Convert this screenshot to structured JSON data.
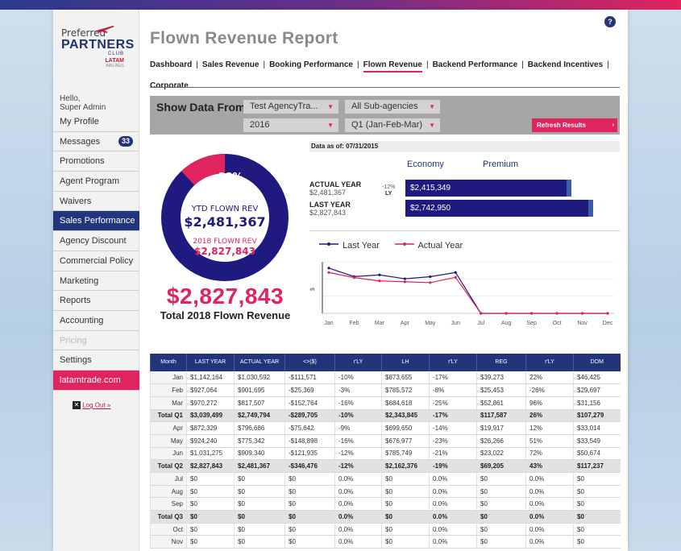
{
  "app": {
    "logo": {
      "line1": "Preferred",
      "line2": "PARTNERS",
      "line3": "CLUB",
      "line4": "LATAM",
      "line5": "AIRLINES"
    },
    "help_label": "?"
  },
  "sidebar": {
    "greeting_1": "Hello,",
    "greeting_2": "Super Admin",
    "items": [
      {
        "label": "My Profile"
      },
      {
        "label": "Messages",
        "badge": "33"
      },
      {
        "label": "Promotions"
      },
      {
        "label": "Agent Program"
      },
      {
        "label": "Waivers"
      },
      {
        "label": "Sales Performance"
      },
      {
        "label": "Agency Discount"
      },
      {
        "label": "Commercial Policy"
      },
      {
        "label": "Marketing"
      },
      {
        "label": "Reports"
      },
      {
        "label": "Accounting"
      },
      {
        "label": "Pricing"
      },
      {
        "label": "Settings"
      },
      {
        "label": "latamtrade.com"
      }
    ],
    "logout_x": "✕",
    "logout_label": "Log Out »"
  },
  "header": {
    "title": "Flown Revenue Report",
    "nav": [
      "Dashboard",
      "Sales Revenue",
      "Booking Performance",
      "Flown Revenue",
      "Backend Performance",
      "Backend Incentives",
      "Corporate"
    ],
    "nav_sep": "|"
  },
  "filters": {
    "label": "Show Data From:",
    "agency": "Test AgencyTra...",
    "subagency": "All Sub-agencies",
    "year": "2016",
    "period": "Q1 (Jan-Feb-Mar)",
    "refresh": "Refresh Results",
    "caret": "▼",
    "refresh_caret": "›"
  },
  "donut": {
    "percent_label": "88%",
    "percent": 0.88,
    "ytd_label": "YTD FLOWN REV",
    "ytd_value": "$2,481,367",
    "prev_label": "2018 FLOWN REV",
    "prev_value": "$2,827,843",
    "colors": {
      "main": "#1e1a80",
      "accent": "#e0245e"
    }
  },
  "total": {
    "value": "$2,827,843",
    "label": "Total 2018 Flown Revenue"
  },
  "bars": {
    "as_of": "Data as of: 07/31/2015",
    "cat_economy": "Economy",
    "cat_premium": "Premium",
    "actual_title": "ACTUAL YEAR",
    "actual_sub": "$2,481,367",
    "last_title": "LAST YEAR",
    "last_sub": "$2,827,843",
    "pct": "-12%",
    "pct_sub": "LY",
    "actual_value": "$2,415,349",
    "actual_amount": 2415349,
    "last_value": "$2,742,950",
    "last_amount": 2742950
  },
  "chart_data": {
    "type": "line",
    "x": [
      "Jan",
      "Feb",
      "Mar",
      "Apr",
      "May",
      "Jun",
      "Jul",
      "Aug",
      "Sep",
      "Oct",
      "Nov",
      "Dec"
    ],
    "series": [
      {
        "name": "Last Year",
        "color": "#1e1a80",
        "values": [
          1142164,
          927064,
          970272,
          872329,
          924240,
          1031275,
          0,
          0,
          0,
          0,
          0,
          0
        ]
      },
      {
        "name": "Actual Year",
        "color": "#e0245e",
        "values": [
          1030592,
          901695,
          817507,
          796686,
          775342,
          909340,
          0,
          0,
          0,
          0,
          0,
          0
        ]
      }
    ],
    "ylabel": "$",
    "ylim": [
      0,
      1300000
    ],
    "grid": true,
    "legend_position": "top-left"
  },
  "table": {
    "headers": [
      "Month",
      "LAST YEAR",
      "ACTUAL YEAR",
      "<>($)",
      "r'LY",
      "LH",
      "r'LY",
      "REG",
      "r'LY",
      "DOM"
    ],
    "rows": [
      {
        "total": false,
        "cells": [
          "Jan",
          "$1,142,164",
          "$1,030,592",
          "-$111,571",
          "-10%",
          "$873,655",
          "-17%",
          "$39,273",
          "22%",
          "$46,425"
        ]
      },
      {
        "total": false,
        "cells": [
          "Feb",
          "$927,064",
          "$901,695",
          "-$25,369",
          "-3%",
          "$785,572",
          "-8%",
          "$25,453",
          "-26%",
          "$29,697"
        ]
      },
      {
        "total": false,
        "cells": [
          "Mar",
          "$970,272",
          "$817,507",
          "-$152,764",
          "-16%",
          "$684,618",
          "-25%",
          "$52,861",
          "96%",
          "$31,156"
        ]
      },
      {
        "total": true,
        "cells": [
          "Total Q1",
          "$3,039,499",
          "$2,749,794",
          "-$289,705",
          "-10%",
          "$2,343,845",
          "-17%",
          "$117,587",
          "26%",
          "$107,279"
        ]
      },
      {
        "total": false,
        "cells": [
          "Apr",
          "$872,329",
          "$796,686",
          "-$75,642",
          "-9%",
          "$699,650",
          "-14%",
          "$19,917",
          "12%",
          "$33,014"
        ]
      },
      {
        "total": false,
        "cells": [
          "May",
          "$924,240",
          "$775,342",
          "-$148,898",
          "-16%",
          "$676,977",
          "-23%",
          "$26,266",
          "51%",
          "$33,549"
        ]
      },
      {
        "total": false,
        "cells": [
          "Jun",
          "$1,031,275",
          "$909,340",
          "-$121,935",
          "-12%",
          "$785,749",
          "-21%",
          "$23,022",
          "72%",
          "$50,674"
        ]
      },
      {
        "total": true,
        "cells": [
          "Total Q2",
          "$2,827,843",
          "$2,481,367",
          "-$346,476",
          "-12%",
          "$2,162,376",
          "-19%",
          "$69,205",
          "43%",
          "$117,237"
        ]
      },
      {
        "total": false,
        "cells": [
          "Jul",
          "$0",
          "$0",
          "$0",
          "0.0%",
          "$0",
          "0.0%",
          "$0",
          "0.0%",
          "$0"
        ]
      },
      {
        "total": false,
        "cells": [
          "Aug",
          "$0",
          "$0",
          "$0",
          "0.0%",
          "$0",
          "0.0%",
          "$0",
          "0.0%",
          "$0"
        ]
      },
      {
        "total": false,
        "cells": [
          "Sep",
          "$0",
          "$0",
          "$0",
          "0.0%",
          "$0",
          "0.0%",
          "$0",
          "0.0%",
          "$0"
        ]
      },
      {
        "total": true,
        "cells": [
          "Total Q3",
          "$0",
          "$0",
          "$0",
          "0.0%",
          "$0",
          "0.0%",
          "$0",
          "0.0%",
          "$0"
        ]
      },
      {
        "total": false,
        "cells": [
          "Oct",
          "$0",
          "$0",
          "$0",
          "0.0%",
          "$0",
          "0.0%",
          "$0",
          "0.0%",
          "$0"
        ]
      },
      {
        "total": false,
        "cells": [
          "Nov",
          "$0",
          "$0",
          "$0",
          "0.0%",
          "$0",
          "0.0%",
          "$0",
          "0.0%",
          "$0"
        ]
      }
    ]
  }
}
